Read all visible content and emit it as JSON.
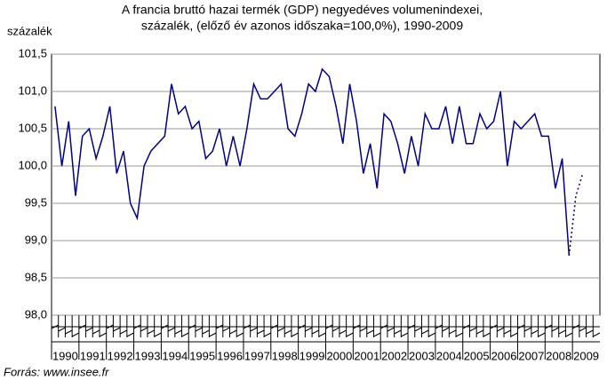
{
  "chart_data": {
    "type": "line",
    "title": [
      "A francia bruttó hazai termék (GDP) negyedéves volumenindexei,",
      "százalék, (előző év azonos időszaka=100,0%), 1990-2009"
    ],
    "y_label": "százalék",
    "source": "Forrás: www.insee.fr",
    "categories": [
      "1990",
      null,
      null,
      null,
      "1991",
      null,
      null,
      null,
      "1992",
      null,
      null,
      null,
      "1993",
      null,
      null,
      null,
      "1994",
      null,
      null,
      null,
      "1995",
      null,
      null,
      null,
      "1996",
      null,
      null,
      null,
      "1997",
      null,
      null,
      null,
      "1998",
      null,
      null,
      null,
      "1999",
      null,
      null,
      null,
      "2000",
      null,
      null,
      null,
      "2001",
      null,
      null,
      null,
      "2002",
      null,
      null,
      null,
      "2003",
      null,
      null,
      null,
      "2004",
      null,
      null,
      null,
      "2005",
      null,
      null,
      null,
      "2006",
      null,
      null,
      null,
      "2007",
      null,
      null,
      null,
      "2008",
      null,
      null,
      null,
      "2009",
      null,
      null,
      null
    ],
    "series": [
      {
        "color": "#000080",
        "dash": false,
        "values": [
          100.8,
          100.0,
          100.6,
          99.6,
          100.4,
          100.5,
          100.1,
          100.4,
          100.8,
          99.9,
          100.2,
          99.5,
          99.3,
          100.0,
          100.2,
          100.3,
          100.4,
          101.1,
          100.7,
          100.8,
          100.5,
          100.6,
          100.1,
          100.2,
          100.5,
          100.0,
          100.4,
          100.0,
          100.5,
          101.1,
          100.9,
          100.9,
          101.0,
          101.1,
          100.5,
          100.4,
          100.7,
          101.1,
          101.0,
          101.3,
          101.2,
          100.8,
          100.3,
          101.1,
          100.6,
          99.9,
          100.3,
          99.7,
          100.7,
          100.6,
          100.3,
          99.9,
          100.4,
          100.0,
          100.7,
          100.5,
          100.5,
          100.8,
          100.3,
          100.8,
          100.3,
          100.3,
          100.7,
          100.5,
          100.6,
          101.0,
          100.0,
          100.6,
          100.5,
          100.6,
          100.7,
          100.4,
          100.4,
          99.7,
          100.1,
          98.8,
          null,
          null,
          null,
          null
        ]
      },
      {
        "color": "#000080",
        "dash": true,
        "values": [
          null,
          null,
          null,
          null,
          null,
          null,
          null,
          null,
          null,
          null,
          null,
          null,
          null,
          null,
          null,
          null,
          null,
          null,
          null,
          null,
          null,
          null,
          null,
          null,
          null,
          null,
          null,
          null,
          null,
          null,
          null,
          null,
          null,
          null,
          null,
          null,
          null,
          null,
          null,
          null,
          null,
          null,
          null,
          null,
          null,
          null,
          null,
          null,
          null,
          null,
          null,
          null,
          null,
          null,
          null,
          null,
          null,
          null,
          null,
          null,
          null,
          null,
          null,
          null,
          null,
          null,
          null,
          null,
          null,
          null,
          null,
          null,
          null,
          null,
          null,
          98.8,
          99.6,
          99.9,
          null,
          null
        ]
      }
    ],
    "ylim": [
      98.0,
      101.5
    ],
    "yticks": [
      {
        "value": 98.0,
        "label": "98,0"
      },
      {
        "value": 98.5,
        "label": "98,5"
      },
      {
        "value": 99.0,
        "label": "99,0"
      },
      {
        "value": 99.5,
        "label": "99,5"
      },
      {
        "value": 100.0,
        "label": "100,0"
      },
      {
        "value": 100.5,
        "label": "100,5"
      },
      {
        "value": 101.0,
        "label": "101,0"
      },
      {
        "value": 101.5,
        "label": "101,5"
      }
    ],
    "grid": true
  }
}
